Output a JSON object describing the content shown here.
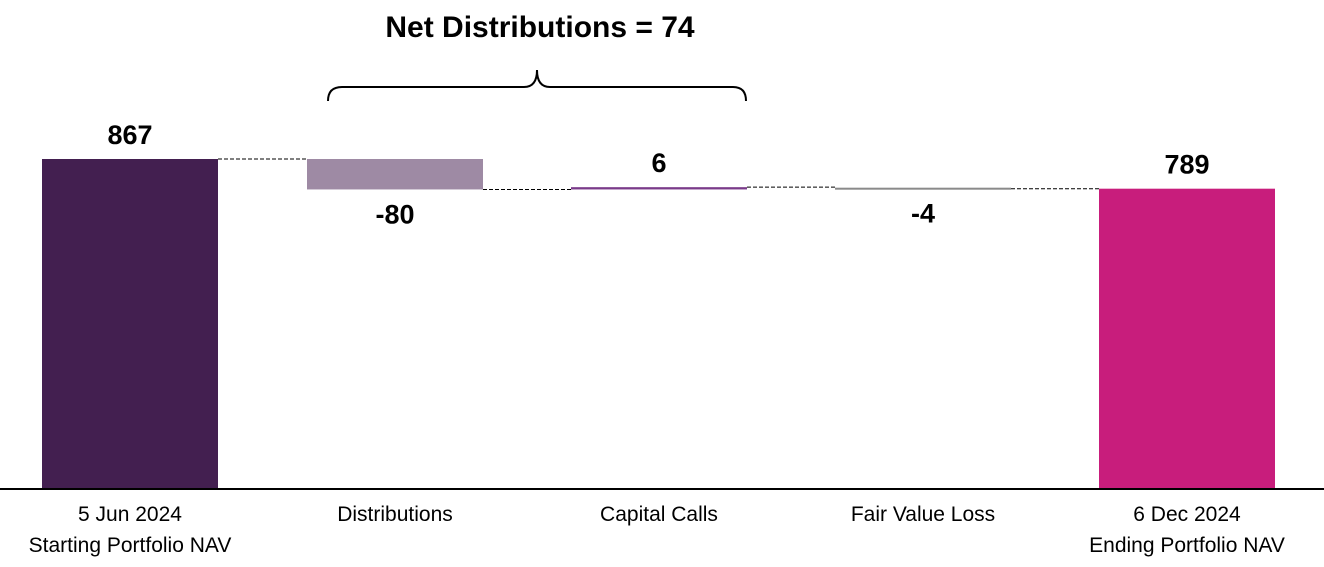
{
  "chart_data": {
    "type": "waterfall",
    "annotation": "Net Distributions = 74",
    "categories": [
      [
        "5 Jun 2024",
        "Starting Portfolio NAV"
      ],
      [
        "Distributions"
      ],
      [
        "Capital Calls"
      ],
      [
        "Fair Value Loss"
      ],
      [
        "6 Dec 2024",
        "Ending Portfolio NAV"
      ]
    ],
    "values": [
      867,
      -80,
      6,
      -4,
      789
    ],
    "value_labels": [
      "867",
      "-80",
      "6",
      "-4",
      "789"
    ],
    "kinds": [
      "total",
      "delta",
      "delta",
      "delta",
      "total"
    ],
    "colors": [
      "#431f50",
      "#9e8aa4",
      "#7a3b8a",
      "#8a8a8a",
      "#c81d7c"
    ],
    "ylim": [
      0,
      867
    ],
    "grid": false,
    "legend": "none"
  }
}
